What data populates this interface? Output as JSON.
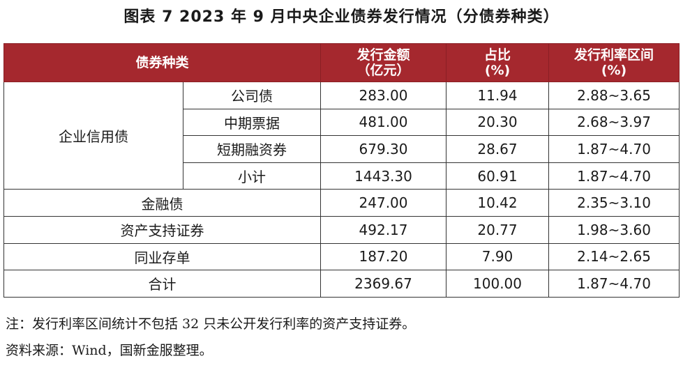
{
  "title": "图表 7  2023 年 9 月中央企业债券发行情况（分债券种类）",
  "table": {
    "headers": {
      "category": "债券种类",
      "amount": [
        "发行金额",
        "（亿元）"
      ],
      "share": [
        "占比",
        "(%)"
      ],
      "rate": [
        "发行利率区间",
        "(%)"
      ]
    },
    "group_label": "企业信用债",
    "group_rows": [
      {
        "name": "公司债",
        "amount": "283.00",
        "share": "11.94",
        "rate": "2.88~3.65"
      },
      {
        "name": "中期票据",
        "amount": "481.00",
        "share": "20.30",
        "rate": "2.68~3.97"
      },
      {
        "name": "短期融资券",
        "amount": "679.30",
        "share": "28.67",
        "rate": "1.87~4.70"
      },
      {
        "name": "小计",
        "amount": "1443.30",
        "share": "60.91",
        "rate": "1.87~4.70"
      }
    ],
    "rows": [
      {
        "name": "金融债",
        "amount": "247.00",
        "share": "10.42",
        "rate": "2.35~3.10"
      },
      {
        "name": "资产支持证券",
        "amount": "492.17",
        "share": "20.77",
        "rate": "1.98~3.60"
      },
      {
        "name": "同业存单",
        "amount": "187.20",
        "share": "7.90",
        "rate": "2.14~2.65"
      },
      {
        "name": "合计",
        "amount": "2369.67",
        "share": "100.00",
        "rate": "1.87~4.70"
      }
    ]
  },
  "notes": {
    "note": "注：发行利率区间统计不包括 32 只未公开发行利率的资产支持证券。",
    "source": "资料来源：Wind，国新金服整理。"
  }
}
